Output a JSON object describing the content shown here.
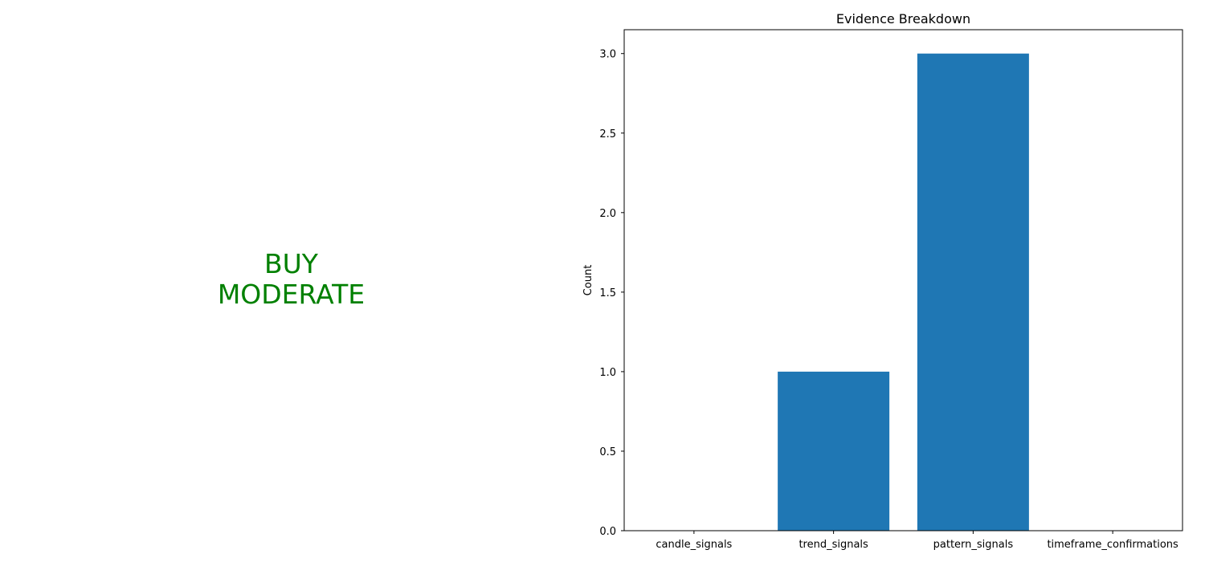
{
  "signal": {
    "action": "BUY",
    "strength": "MODERATE",
    "color": "#008000"
  },
  "chart_data": {
    "type": "bar",
    "title": "Evidence Breakdown",
    "xlabel": "",
    "ylabel": "Count",
    "categories": [
      "candle_signals",
      "trend_signals",
      "pattern_signals",
      "timeframe_confirmations"
    ],
    "values": [
      0,
      1,
      3,
      0
    ],
    "ylim": [
      0,
      3.15
    ],
    "yticks": [
      0.0,
      0.5,
      1.0,
      1.5,
      2.0,
      2.5,
      3.0
    ],
    "ytick_labels": [
      "0.0",
      "0.5",
      "1.0",
      "1.5",
      "2.0",
      "2.5",
      "3.0"
    ],
    "bar_color": "#1f77b4",
    "grid": false,
    "legend": "none"
  }
}
